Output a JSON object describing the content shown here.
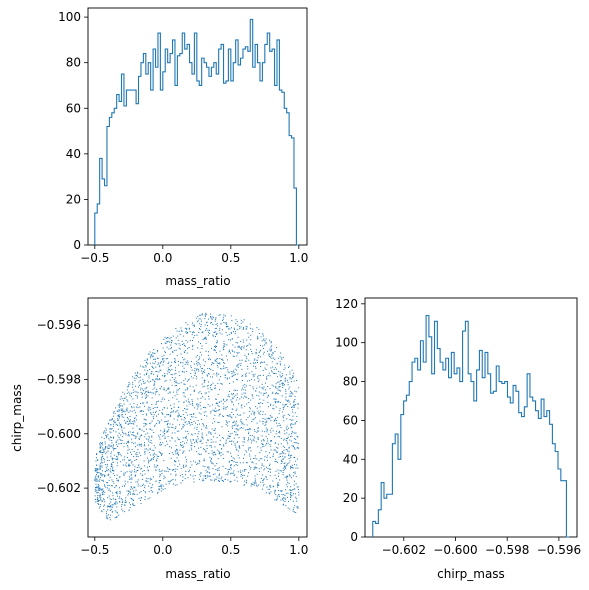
{
  "chart_data": [
    {
      "type": "histogram",
      "panel": "top-left",
      "xlabel": "mass_ratio",
      "ylabel": "",
      "xlim": [
        -0.55,
        1.06
      ],
      "ylim": [
        0,
        104
      ],
      "xticks": [
        -0.5,
        0.0,
        0.5,
        1.0
      ],
      "xtick_labels": [
        "−0.5",
        "0.0",
        "0.5",
        "1.0"
      ],
      "yticks": [
        0,
        20,
        40,
        60,
        80,
        100
      ],
      "ytick_labels": [
        "0",
        "20",
        "40",
        "60",
        "80",
        "100"
      ],
      "color": "#1f77b4",
      "bin_range": [
        -0.5,
        1.0
      ],
      "counts": [
        14,
        18,
        38,
        29,
        26,
        52,
        56,
        58,
        60,
        66,
        63,
        75,
        61,
        68,
        68,
        68,
        68,
        62,
        74,
        80,
        84,
        75,
        80,
        68,
        86,
        78,
        93,
        68,
        76,
        86,
        80,
        84,
        90,
        70,
        83,
        84,
        93,
        86,
        88,
        80,
        75,
        93,
        72,
        70,
        82,
        80,
        78,
        74,
        78,
        80,
        75,
        86,
        88,
        71,
        72,
        86,
        72,
        80,
        90,
        79,
        82,
        86,
        87,
        85,
        99,
        78,
        88,
        80,
        72,
        80,
        88,
        93,
        85,
        86,
        70,
        90,
        68,
        67,
        60,
        58,
        48,
        47,
        25,
        0
      ]
    },
    {
      "type": "scatter",
      "panel": "bottom-left",
      "xlabel": "mass_ratio",
      "ylabel": "chirp_mass",
      "xlim": [
        -0.55,
        1.06
      ],
      "ylim": [
        -0.6038,
        -0.595
      ],
      "xticks": [
        -0.5,
        0.0,
        0.5,
        1.0
      ],
      "xtick_labels": [
        "−0.5",
        "0.0",
        "0.5",
        "1.0"
      ],
      "yticks": [
        -0.602,
        -0.6,
        -0.598,
        -0.596
      ],
      "ytick_labels": [
        "−0.602",
        "−0.600",
        "−0.598",
        "−0.596"
      ],
      "color": "#1f77b4",
      "point_count": 3200,
      "region": {
        "x_range": [
          -0.5,
          1.0
        ],
        "upper_envelope": [
          [
            -0.5,
            -0.6008
          ],
          [
            -0.4,
            -0.5995
          ],
          [
            -0.3,
            -0.5985
          ],
          [
            -0.2,
            -0.5977
          ],
          [
            -0.1,
            -0.597
          ],
          [
            0.0,
            -0.5965
          ],
          [
            0.1,
            -0.5961
          ],
          [
            0.2,
            -0.5958
          ],
          [
            0.3,
            -0.59555
          ],
          [
            0.4,
            -0.59555
          ],
          [
            0.5,
            -0.59565
          ],
          [
            0.6,
            -0.5958
          ],
          [
            0.7,
            -0.5961
          ],
          [
            0.8,
            -0.5966
          ],
          [
            0.9,
            -0.5972
          ],
          [
            1.0,
            -0.598
          ]
        ],
        "lower_envelope": [
          [
            -0.5,
            -0.6025
          ],
          [
            -0.4,
            -0.6032
          ],
          [
            -0.3,
            -0.603
          ],
          [
            -0.2,
            -0.6027
          ],
          [
            -0.1,
            -0.6024
          ],
          [
            0.0,
            -0.6021
          ],
          [
            0.1,
            -0.6019
          ],
          [
            0.2,
            -0.6018
          ],
          [
            0.3,
            -0.60175
          ],
          [
            0.4,
            -0.60175
          ],
          [
            0.5,
            -0.6018
          ],
          [
            0.6,
            -0.6019
          ],
          [
            0.7,
            -0.6021
          ],
          [
            0.8,
            -0.6024
          ],
          [
            0.9,
            -0.6027
          ],
          [
            1.0,
            -0.603
          ]
        ]
      }
    },
    {
      "type": "histogram",
      "panel": "bottom-right",
      "xlabel": "chirp_mass",
      "ylabel": "",
      "xlim": [
        -0.6035,
        -0.5953
      ],
      "ylim": [
        0,
        123
      ],
      "xticks": [
        -0.602,
        -0.6,
        -0.598,
        -0.596
      ],
      "xtick_labels": [
        "−0.602",
        "−0.600",
        "−0.598",
        "−0.596"
      ],
      "yticks": [
        0,
        20,
        40,
        60,
        80,
        100,
        120
      ],
      "ytick_labels": [
        "0",
        "20",
        "40",
        "60",
        "80",
        "100",
        "120"
      ],
      "color": "#1f77b4",
      "bin_range": [
        -0.6032,
        -0.5956
      ],
      "counts": [
        8,
        7,
        14,
        28,
        20,
        22,
        22,
        48,
        53,
        40,
        63,
        70,
        73,
        80,
        90,
        92,
        86,
        101,
        90,
        114,
        103,
        84,
        111,
        97,
        90,
        86,
        92,
        82,
        95,
        84,
        87,
        80,
        106,
        111,
        84,
        80,
        70,
        86,
        96,
        82,
        95,
        84,
        74,
        75,
        88,
        80,
        79,
        80,
        72,
        69,
        78,
        75,
        64,
        62,
        67,
        84,
        72,
        70,
        65,
        61,
        71,
        62,
        65,
        58,
        48,
        44,
        35,
        29,
        29,
        0
      ]
    }
  ]
}
